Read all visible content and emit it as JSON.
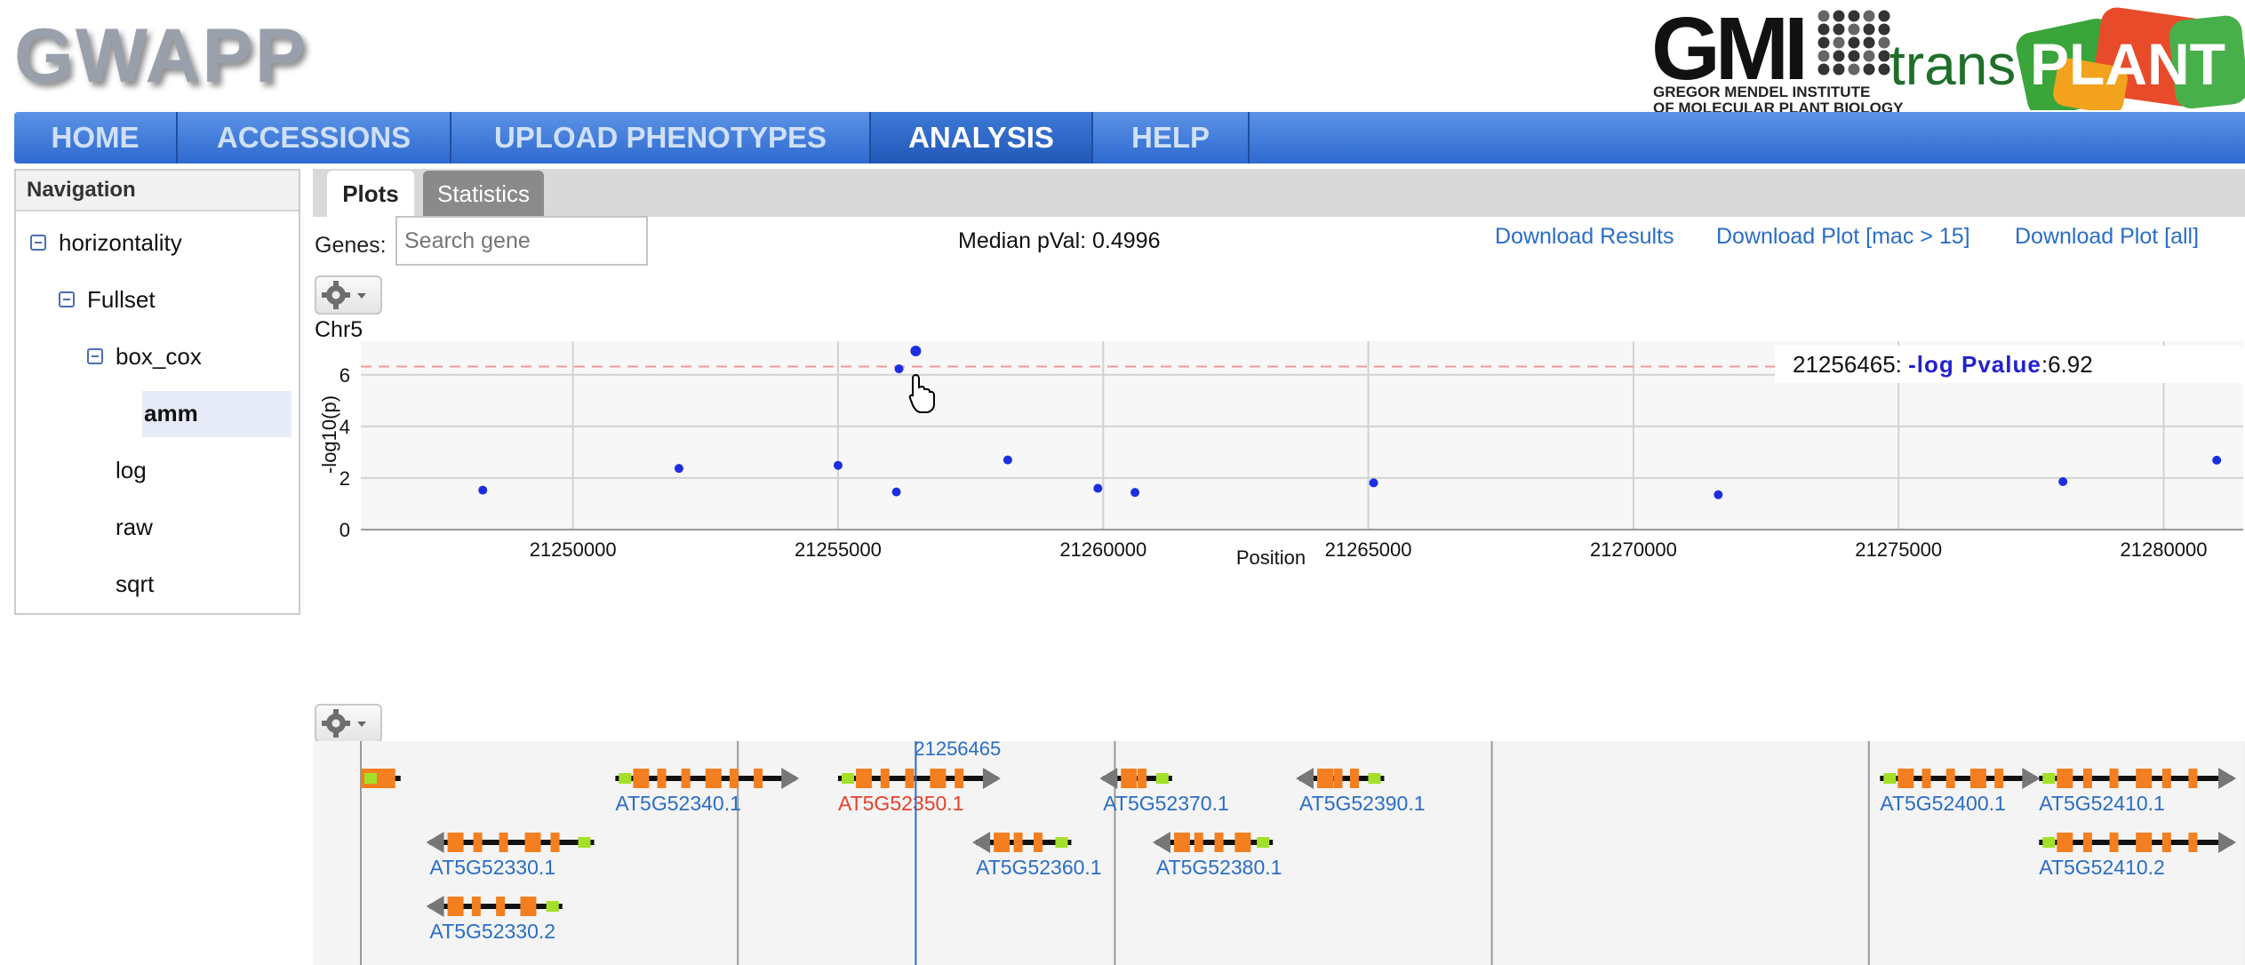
{
  "app": {
    "logo": "GWAPP"
  },
  "partners": {
    "gmi_logo": "GMI",
    "gmi_line1": "GREGOR MENDEL INSTITUTE",
    "gmi_line2": "OF MOLECULAR PLANT BIOLOGY",
    "transplant_prefix": "trans",
    "transplant_suffix": "PLANT"
  },
  "nav": {
    "items": [
      {
        "label": "HOME"
      },
      {
        "label": "ACCESSIONS"
      },
      {
        "label": "UPLOAD PHENOTYPES"
      },
      {
        "label": "ANALYSIS"
      },
      {
        "label": "HELP"
      }
    ],
    "active": "ANALYSIS"
  },
  "sidebar": {
    "title": "Navigation",
    "tree": [
      {
        "label": "horizontality"
      },
      {
        "label": "Fullset"
      },
      {
        "label": "box_cox"
      },
      {
        "label": "amm"
      },
      {
        "label": "log"
      },
      {
        "label": "raw"
      },
      {
        "label": "sqrt"
      }
    ],
    "selected": "amm"
  },
  "tabs": [
    {
      "label": "Plots"
    },
    {
      "label": "Statistics"
    }
  ],
  "active_tab": "Plots",
  "toolbar": {
    "genes_label": "Genes:",
    "search_placeholder": "Search gene",
    "median_pval": "Median pVal: 0.4996",
    "download_results": "Download Results",
    "download_plot_mac": "Download Plot [mac > 15]",
    "download_plot_all": "Download Plot [all]"
  },
  "plot": {
    "chromosome": "Chr5",
    "tooltip_position": "21256465: ",
    "tooltip_label": "-log Pvalue",
    "tooltip_value": ":6.92"
  },
  "chart_data": {
    "type": "scatter",
    "title": "Chr5",
    "xlabel": "Position",
    "ylabel": "-log10(p)",
    "xlim": [
      21246000,
      21281500
    ],
    "ylim": [
      0,
      7.3
    ],
    "xticks": [
      21250000,
      21255000,
      21260000,
      21265000,
      21270000,
      21275000,
      21280000
    ],
    "yticks": [
      0,
      2,
      4,
      6
    ],
    "threshold": 6.32,
    "points": [
      {
        "x": 21248300,
        "y": 1.53
      },
      {
        "x": 21252000,
        "y": 2.37
      },
      {
        "x": 21255000,
        "y": 2.49
      },
      {
        "x": 21256100,
        "y": 1.46
      },
      {
        "x": 21256150,
        "y": 6.23
      },
      {
        "x": 21256465,
        "y": 6.92
      },
      {
        "x": 21258200,
        "y": 2.7
      },
      {
        "x": 21259900,
        "y": 1.6
      },
      {
        "x": 21260600,
        "y": 1.44
      },
      {
        "x": 21265100,
        "y": 1.81
      },
      {
        "x": 21271600,
        "y": 1.35
      },
      {
        "x": 21278100,
        "y": 1.86
      },
      {
        "x": 21281000,
        "y": 2.69
      }
    ],
    "marker": 21256465,
    "grid": true,
    "color": "#1b2fe0"
  },
  "genes": {
    "marker_label": "21256465",
    "items": [
      {
        "name": "",
        "start": 21246000,
        "end": 21246750,
        "row": 0,
        "strand": "+",
        "label_color": "#2a6dc6"
      },
      {
        "name": "AT5G52340.1",
        "start": 21250800,
        "end": 21254200,
        "row": 0,
        "strand": "+",
        "label_color": "#2a6dc6"
      },
      {
        "name": "AT5G52350.1",
        "start": 21255000,
        "end": 21258000,
        "row": 0,
        "strand": "+",
        "label_color": "#e8402b"
      },
      {
        "name": "AT5G52370.1",
        "start": 21260000,
        "end": 21261300,
        "row": 0,
        "strand": "-",
        "label_color": "#2a6dc6"
      },
      {
        "name": "AT5G52390.1",
        "start": 21263700,
        "end": 21265300,
        "row": 0,
        "strand": "-",
        "label_color": "#2a6dc6"
      },
      {
        "name": "AT5G52400.1",
        "start": 21274650,
        "end": 21277600,
        "row": 0,
        "strand": "+",
        "label_color": "#2a6dc6"
      },
      {
        "name": "AT5G52410.1",
        "start": 21277650,
        "end": 21281300,
        "row": 0,
        "strand": "+",
        "label_color": "#2a6dc6"
      },
      {
        "name": "AT5G52330.1",
        "start": 21247300,
        "end": 21250400,
        "row": 1,
        "strand": "-",
        "label_color": "#2a6dc6"
      },
      {
        "name": "AT5G52360.1",
        "start": 21257600,
        "end": 21259400,
        "row": 1,
        "strand": "-",
        "label_color": "#2a6dc6"
      },
      {
        "name": "AT5G52380.1",
        "start": 21261000,
        "end": 21263200,
        "row": 1,
        "strand": "-",
        "label_color": "#2a6dc6"
      },
      {
        "name": "AT5G52410.2",
        "start": 21277650,
        "end": 21281300,
        "row": 1,
        "strand": "+",
        "label_color": "#2a6dc6"
      },
      {
        "name": "AT5G52330.2",
        "start": 21247300,
        "end": 21249800,
        "row": 2,
        "strand": "-",
        "label_color": "#2a6dc6"
      }
    ]
  },
  "colors": {
    "nav_bg": "#3d78d8",
    "point": "#1b2fe0",
    "threshold": "#f29a9a",
    "exon": "#f47f20",
    "utr": "#a3e02a",
    "arrow": "#777777",
    "gene_link": "#2a6dc6",
    "gene_highlight": "#e8402b"
  }
}
